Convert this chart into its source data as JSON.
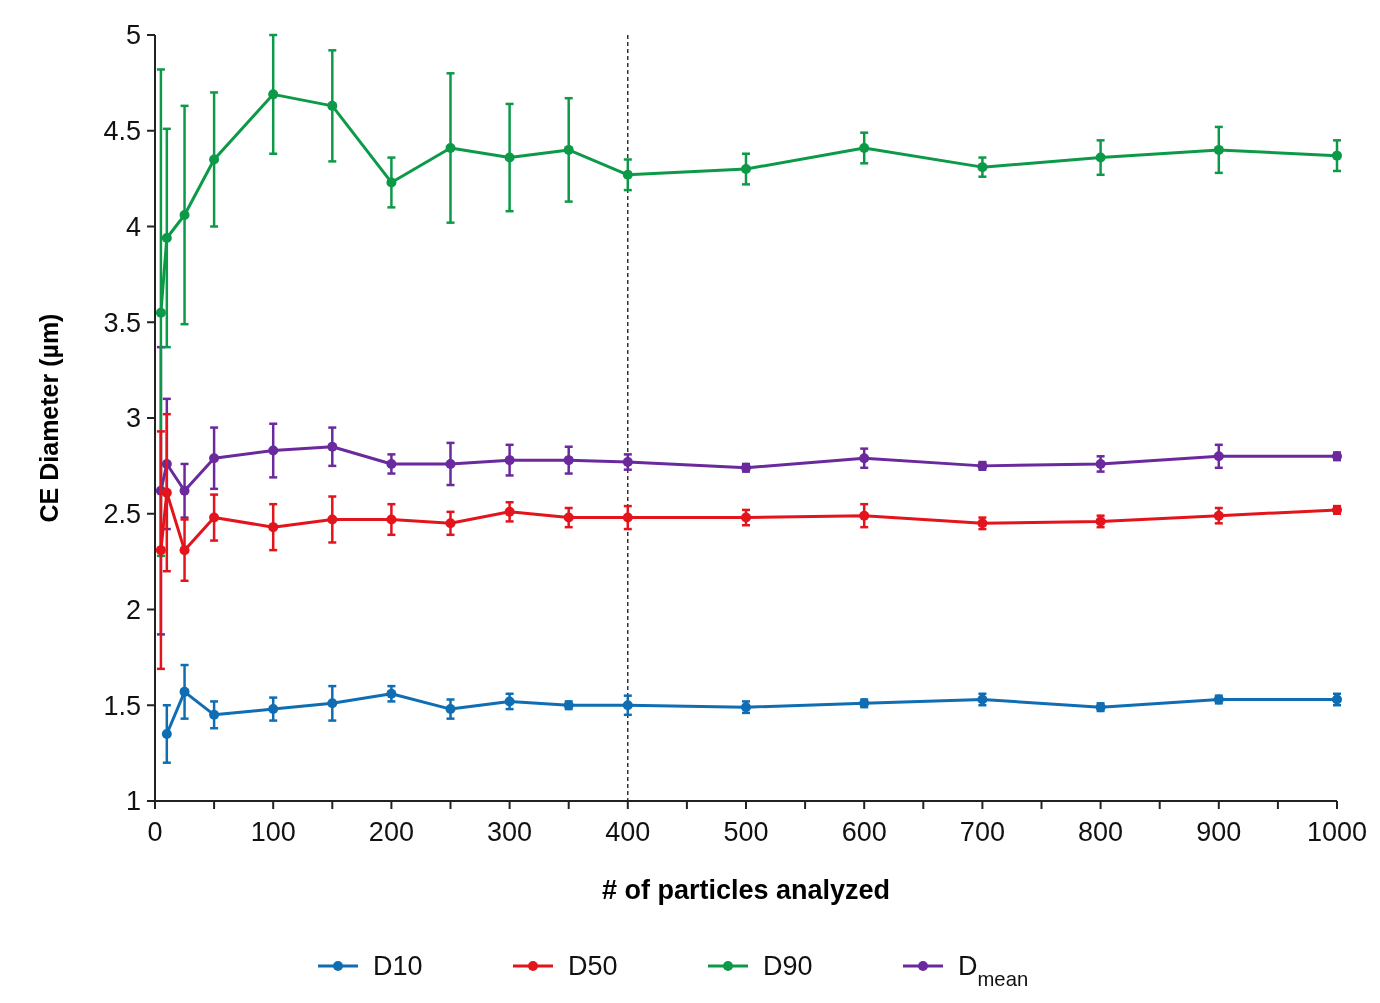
{
  "chart_data": {
    "type": "line",
    "xlabel": "# of particles analyzed",
    "ylabel": "CE Diameter (µm)",
    "x": [
      5,
      10,
      25,
      50,
      100,
      150,
      200,
      250,
      300,
      350,
      400,
      500,
      600,
      700,
      800,
      900,
      1000
    ],
    "series": [
      {
        "name": "D10",
        "color": "#0f6db3",
        "values": [
          null,
          1.35,
          1.57,
          1.45,
          1.48,
          1.51,
          1.56,
          1.48,
          1.52,
          1.5,
          1.5,
          1.49,
          1.51,
          1.53,
          1.49,
          1.53,
          1.53
        ],
        "errors": [
          null,
          0.15,
          0.14,
          0.07,
          0.06,
          0.09,
          0.04,
          0.05,
          0.04,
          0.02,
          0.05,
          0.03,
          0.02,
          0.03,
          0.02,
          0.02,
          0.03
        ]
      },
      {
        "name": "D50",
        "color": "#e3141b",
        "values": [
          2.31,
          2.61,
          2.31,
          2.48,
          2.43,
          2.47,
          2.47,
          2.45,
          2.51,
          2.48,
          2.48,
          2.48,
          2.49,
          2.45,
          2.46,
          2.49,
          2.52
        ],
        "errors": [
          0.62,
          0.41,
          0.16,
          0.12,
          0.12,
          0.12,
          0.08,
          0.06,
          0.05,
          0.05,
          0.06,
          0.04,
          0.06,
          0.03,
          0.03,
          0.04,
          0.02
        ]
      },
      {
        "name": "D90",
        "color": "#0d9a48",
        "values": [
          3.55,
          3.94,
          4.06,
          4.35,
          4.69,
          4.63,
          4.23,
          4.41,
          4.36,
          4.4,
          4.27,
          4.3,
          4.41,
          4.31,
          4.36,
          4.4,
          4.37
        ],
        "errors": [
          1.27,
          0.57,
          0.57,
          0.35,
          0.31,
          0.29,
          0.13,
          0.39,
          0.28,
          0.27,
          0.08,
          0.08,
          0.08,
          0.05,
          0.09,
          0.12,
          0.08
        ]
      },
      {
        "name": "D$_{mean}$",
        "color": "#6a2a9e",
        "values": [
          2.62,
          2.76,
          2.62,
          2.79,
          2.83,
          2.85,
          2.76,
          2.76,
          2.78,
          2.78,
          2.77,
          2.74,
          2.79,
          2.75,
          2.76,
          2.8,
          2.8
        ],
        "errors": [
          0.75,
          0.34,
          0.14,
          0.16,
          0.14,
          0.1,
          0.05,
          0.11,
          0.08,
          0.07,
          0.04,
          0.02,
          0.05,
          0.02,
          0.04,
          0.06,
          0.02
        ]
      }
    ],
    "xlim": [
      0,
      1000
    ],
    "xticks": [
      0,
      {
        "value": 50,
        "label": null
      },
      100,
      {
        "value": 150,
        "label": null
      },
      200,
      {
        "value": 250,
        "label": null
      },
      300,
      {
        "value": 350,
        "label": null
      },
      400,
      {
        "value": 450,
        "label": null
      },
      500,
      {
        "value": 550,
        "label": null
      },
      600,
      {
        "value": 650,
        "label": null
      },
      700,
      {
        "value": 750,
        "label": null
      },
      800,
      {
        "value": 850,
        "label": null
      },
      900,
      {
        "value": 950,
        "label": null
      },
      1000
    ],
    "ylim": [
      1,
      5
    ],
    "yticks": [
      1,
      1.5,
      2,
      2.5,
      3,
      3.5,
      4,
      4.5,
      5
    ],
    "ref_lines": [
      {
        "axis": "x",
        "value": 400,
        "color": "#000000",
        "line_style": "dashed"
      }
    ],
    "legend": "bottom",
    "marker": "circle",
    "line_style": "solid",
    "grid": false
  }
}
